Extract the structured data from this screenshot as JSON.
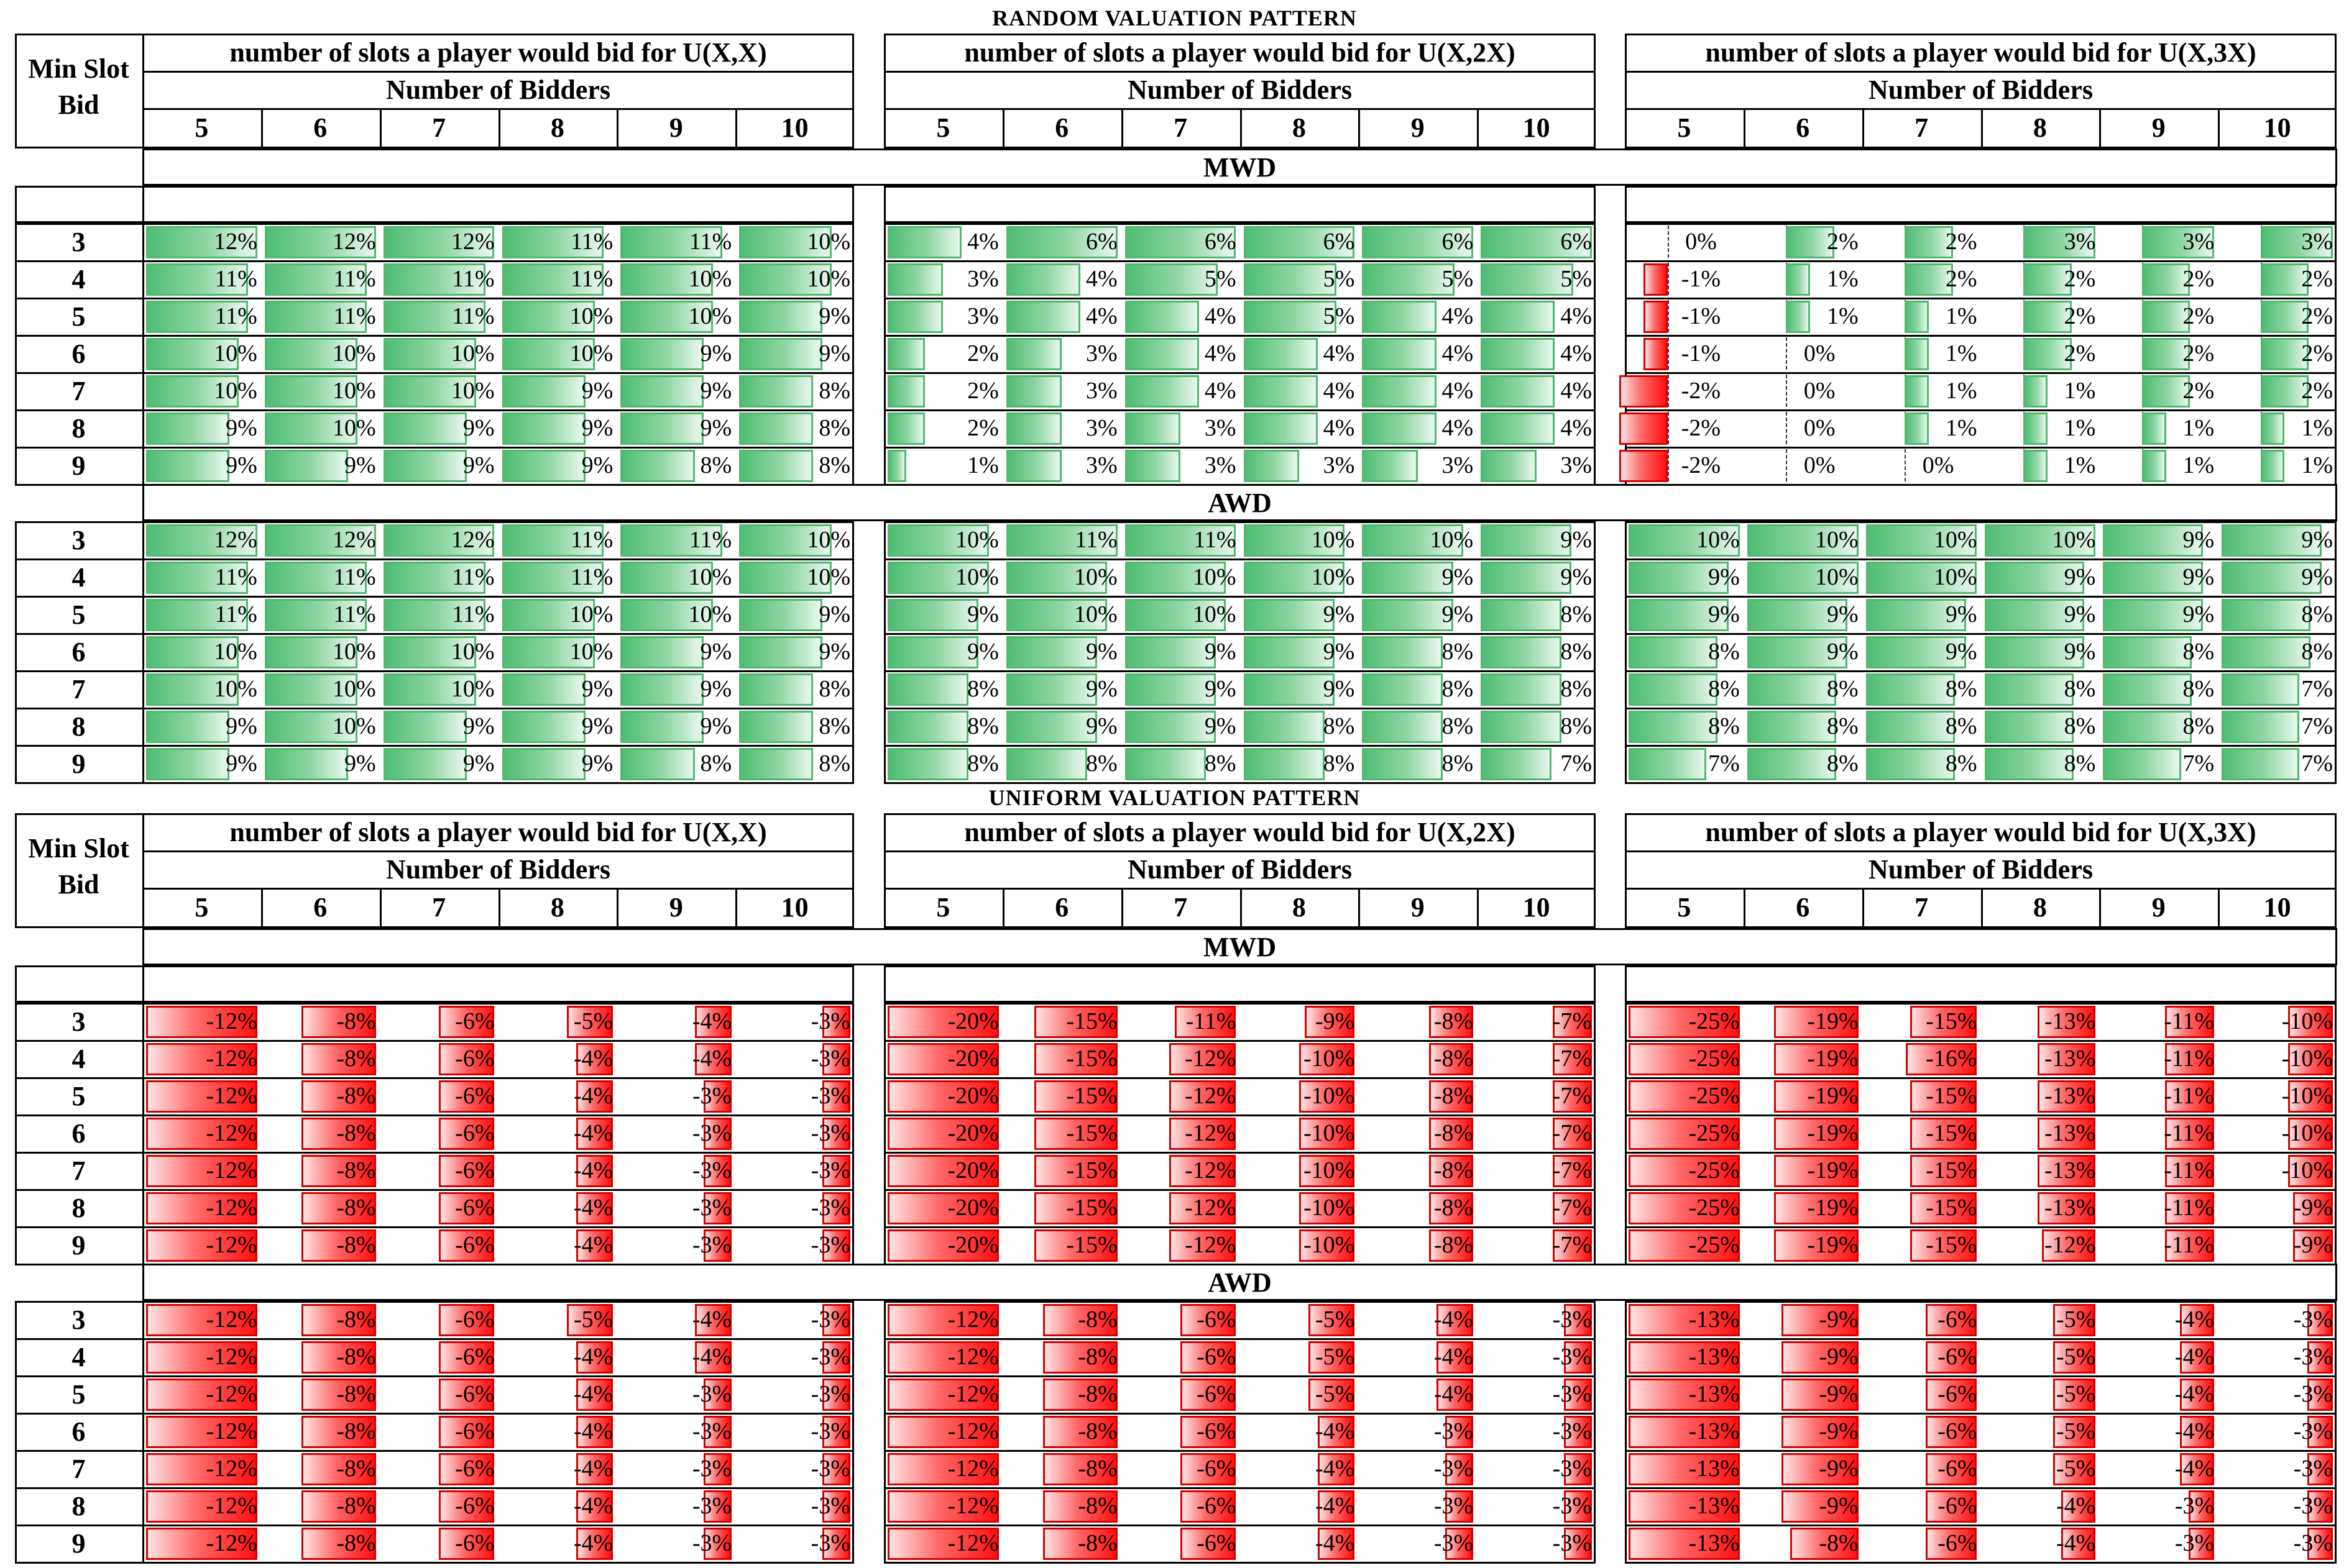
{
  "random_title": "RANDOM VALUATION PATTERN",
  "uniform_title": "UNIFORM VALUATION PATTERN",
  "min_slot_bid_label": "Min Slot",
  "min_slot_bid_label2": "Bid",
  "number_of_bidders": "Number of Bidders",
  "group_titles": [
    "number of slots a player would bid for U(X,X)",
    "number of slots a player would bid for  U(X,2X)",
    "number of slots a player would bid for  U(X,3X)"
  ],
  "bidders": [
    "5",
    "6",
    "7",
    "8",
    "9",
    "10"
  ],
  "min_slot_bids": [
    "3",
    "4",
    "5",
    "6",
    "7",
    "8",
    "9"
  ],
  "section_labels": {
    "mwd": "MWD",
    "awd": "AWD"
  },
  "colors": {
    "positive": "#4fbd72",
    "negative": "#ff1010"
  },
  "chart_data": {
    "type": "table",
    "unit": "%",
    "random": {
      "mwd": [
        [
          [
            12,
            12,
            12,
            11,
            11,
            10
          ],
          [
            11,
            11,
            11,
            11,
            10,
            10
          ],
          [
            11,
            11,
            11,
            10,
            10,
            9
          ],
          [
            10,
            10,
            10,
            10,
            9,
            9
          ],
          [
            10,
            10,
            10,
            9,
            9,
            8
          ],
          [
            9,
            10,
            9,
            9,
            9,
            8
          ],
          [
            9,
            9,
            9,
            9,
            8,
            8
          ]
        ],
        [
          [
            4,
            6,
            6,
            6,
            6,
            6
          ],
          [
            3,
            4,
            5,
            5,
            5,
            5
          ],
          [
            3,
            4,
            4,
            5,
            4,
            4
          ],
          [
            2,
            3,
            4,
            4,
            4,
            4
          ],
          [
            2,
            3,
            4,
            4,
            4,
            4
          ],
          [
            2,
            3,
            3,
            4,
            4,
            4
          ],
          [
            1,
            3,
            3,
            3,
            3,
            3
          ]
        ],
        [
          [
            0,
            2,
            2,
            3,
            3,
            3
          ],
          [
            -1,
            1,
            2,
            2,
            2,
            2
          ],
          [
            -1,
            1,
            1,
            2,
            2,
            2
          ],
          [
            -1,
            0,
            1,
            2,
            2,
            2
          ],
          [
            -2,
            0,
            1,
            1,
            2,
            2
          ],
          [
            -2,
            0,
            1,
            1,
            1,
            1
          ],
          [
            -2,
            0,
            0,
            1,
            1,
            1
          ]
        ]
      ],
      "awd": [
        [
          [
            12,
            12,
            12,
            11,
            11,
            10
          ],
          [
            11,
            11,
            11,
            11,
            10,
            10
          ],
          [
            11,
            11,
            11,
            10,
            10,
            9
          ],
          [
            10,
            10,
            10,
            10,
            9,
            9
          ],
          [
            10,
            10,
            10,
            9,
            9,
            8
          ],
          [
            9,
            10,
            9,
            9,
            9,
            8
          ],
          [
            9,
            9,
            9,
            9,
            8,
            8
          ]
        ],
        [
          [
            10,
            11,
            11,
            10,
            10,
            9
          ],
          [
            10,
            10,
            10,
            10,
            9,
            9
          ],
          [
            9,
            10,
            10,
            9,
            9,
            8
          ],
          [
            9,
            9,
            9,
            9,
            8,
            8
          ],
          [
            8,
            9,
            9,
            9,
            8,
            8
          ],
          [
            8,
            9,
            9,
            8,
            8,
            8
          ],
          [
            8,
            8,
            8,
            8,
            8,
            7
          ]
        ],
        [
          [
            10,
            10,
            10,
            10,
            9,
            9
          ],
          [
            9,
            10,
            10,
            9,
            9,
            9
          ],
          [
            9,
            9,
            9,
            9,
            9,
            8
          ],
          [
            8,
            9,
            9,
            9,
            8,
            8
          ],
          [
            8,
            8,
            8,
            8,
            8,
            7
          ],
          [
            8,
            8,
            8,
            8,
            8,
            7
          ],
          [
            7,
            8,
            8,
            8,
            7,
            7
          ]
        ]
      ]
    },
    "uniform": {
      "mwd": [
        [
          [
            -12,
            -8,
            -6,
            -5,
            -4,
            -3
          ],
          [
            -12,
            -8,
            -6,
            -4,
            -4,
            -3
          ],
          [
            -12,
            -8,
            -6,
            -4,
            -3,
            -3
          ],
          [
            -12,
            -8,
            -6,
            -4,
            -3,
            -3
          ],
          [
            -12,
            -8,
            -6,
            -4,
            -3,
            -3
          ],
          [
            -12,
            -8,
            -6,
            -4,
            -3,
            -3
          ],
          [
            -12,
            -8,
            -6,
            -4,
            -3,
            -3
          ]
        ],
        [
          [
            -20,
            -15,
            -11,
            -9,
            -8,
            -7
          ],
          [
            -20,
            -15,
            -12,
            -10,
            -8,
            -7
          ],
          [
            -20,
            -15,
            -12,
            -10,
            -8,
            -7
          ],
          [
            -20,
            -15,
            -12,
            -10,
            -8,
            -7
          ],
          [
            -20,
            -15,
            -12,
            -10,
            -8,
            -7
          ],
          [
            -20,
            -15,
            -12,
            -10,
            -8,
            -7
          ],
          [
            -20,
            -15,
            -12,
            -10,
            -8,
            -7
          ]
        ],
        [
          [
            -25,
            -19,
            -15,
            -13,
            -11,
            -10
          ],
          [
            -25,
            -19,
            -16,
            -13,
            -11,
            -10
          ],
          [
            -25,
            -19,
            -15,
            -13,
            -11,
            -10
          ],
          [
            -25,
            -19,
            -15,
            -13,
            -11,
            -10
          ],
          [
            -25,
            -19,
            -15,
            -13,
            -11,
            -10
          ],
          [
            -25,
            -19,
            -15,
            -13,
            -11,
            -9
          ],
          [
            -25,
            -19,
            -15,
            -12,
            -11,
            -9
          ]
        ]
      ],
      "awd": [
        [
          [
            -12,
            -8,
            -6,
            -5,
            -4,
            -3
          ],
          [
            -12,
            -8,
            -6,
            -4,
            -4,
            -3
          ],
          [
            -12,
            -8,
            -6,
            -4,
            -3,
            -3
          ],
          [
            -12,
            -8,
            -6,
            -4,
            -3,
            -3
          ],
          [
            -12,
            -8,
            -6,
            -4,
            -3,
            -3
          ],
          [
            -12,
            -8,
            -6,
            -4,
            -3,
            -3
          ],
          [
            -12,
            -8,
            -6,
            -4,
            -3,
            -3
          ]
        ],
        [
          [
            -12,
            -8,
            -6,
            -5,
            -4,
            -3
          ],
          [
            -12,
            -8,
            -6,
            -5,
            -4,
            -3
          ],
          [
            -12,
            -8,
            -6,
            -5,
            -4,
            -3
          ],
          [
            -12,
            -8,
            -6,
            -4,
            -3,
            -3
          ],
          [
            -12,
            -8,
            -6,
            -4,
            -3,
            -3
          ],
          [
            -12,
            -8,
            -6,
            -4,
            -3,
            -3
          ],
          [
            -12,
            -8,
            -6,
            -4,
            -3,
            -3
          ]
        ],
        [
          [
            -13,
            -9,
            -6,
            -5,
            -4,
            -3
          ],
          [
            -13,
            -9,
            -6,
            -5,
            -4,
            -3
          ],
          [
            -13,
            -9,
            -6,
            -5,
            -4,
            -3
          ],
          [
            -13,
            -9,
            -6,
            -5,
            -4,
            -3
          ],
          [
            -13,
            -9,
            -6,
            -5,
            -4,
            -3
          ],
          [
            -13,
            -9,
            -6,
            -4,
            -3,
            -3
          ],
          [
            -13,
            -8,
            -6,
            -4,
            -3,
            -3
          ]
        ]
      ]
    }
  }
}
